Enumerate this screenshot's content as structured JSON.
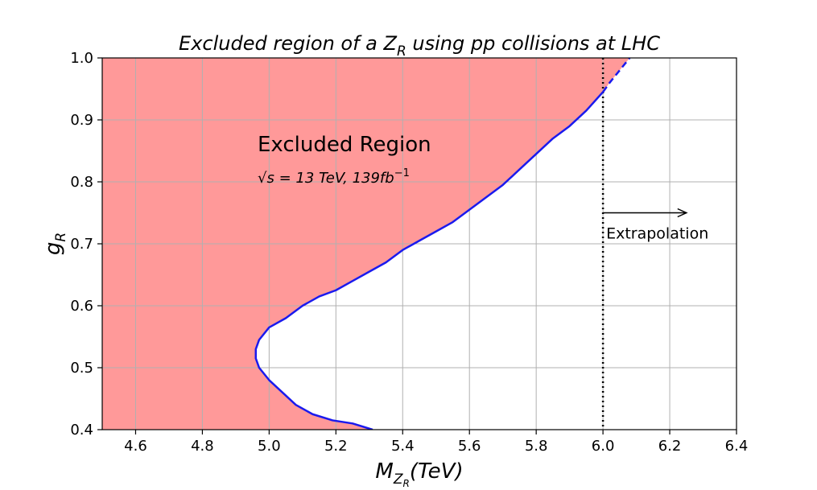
{
  "chart_data": {
    "type": "area",
    "title_main": "Excluded region of a Z",
    "title_sub": "R",
    "title_rest": " using pp collisions at LHC",
    "xlabel_main": "M",
    "xlabel_sub1": "Z",
    "xlabel_sub2": "R",
    "xlabel_rest": "(TeV)",
    "ylabel_main": "g",
    "ylabel_sub": "R",
    "xlim": [
      4.5,
      6.4
    ],
    "ylim": [
      0.4,
      1.0
    ],
    "xticks": [
      4.6,
      4.8,
      5.0,
      5.2,
      5.4,
      5.6,
      5.8,
      6.0,
      6.2,
      6.4
    ],
    "xtick_labels": [
      "4.6",
      "4.8",
      "5.0",
      "5.2",
      "5.4",
      "5.6",
      "5.8",
      "6.0",
      "6.2",
      "6.4"
    ],
    "yticks": [
      0.4,
      0.5,
      0.6,
      0.7,
      0.8,
      0.9,
      1.0
    ],
    "ytick_labels": [
      "0.4",
      "0.5",
      "0.6",
      "0.7",
      "0.8",
      "0.9",
      "1.0"
    ],
    "grid": true,
    "region_label": "Excluded Region",
    "energy_label_sqrt": "√",
    "energy_label_s": "s",
    "energy_label_rest": " = 13 TeV,  139fb",
    "energy_label_exp": "−1",
    "extrapolation_label": "Extrapolation",
    "extrapolation_start": 6.0,
    "extrapolation_arrow": {
      "x_from": 6.0,
      "x_to": 6.25,
      "y": 0.75
    },
    "fill_color": "#ff9999",
    "line_color": "#1a1aee",
    "series": [
      {
        "style": "solid",
        "x": [
          5.31,
          5.25,
          5.19,
          5.13,
          5.08,
          5.04,
          5.0,
          4.97,
          4.96,
          4.96,
          4.97,
          5.0,
          5.05,
          5.1,
          5.15,
          5.2,
          5.25,
          5.3,
          5.35,
          5.4,
          5.45,
          5.5,
          5.55,
          5.6,
          5.65,
          5.7,
          5.75,
          5.8,
          5.85,
          5.9,
          5.95,
          6.0
        ],
        "y": [
          0.4,
          0.41,
          0.415,
          0.425,
          0.44,
          0.46,
          0.48,
          0.5,
          0.515,
          0.53,
          0.545,
          0.565,
          0.58,
          0.6,
          0.615,
          0.625,
          0.64,
          0.655,
          0.67,
          0.69,
          0.705,
          0.72,
          0.735,
          0.755,
          0.775,
          0.795,
          0.82,
          0.845,
          0.87,
          0.89,
          0.915,
          0.945
        ]
      },
      {
        "style": "dashed",
        "x": [
          6.0,
          6.02,
          6.05,
          6.08
        ],
        "y": [
          0.945,
          0.96,
          0.98,
          1.0
        ]
      }
    ]
  }
}
